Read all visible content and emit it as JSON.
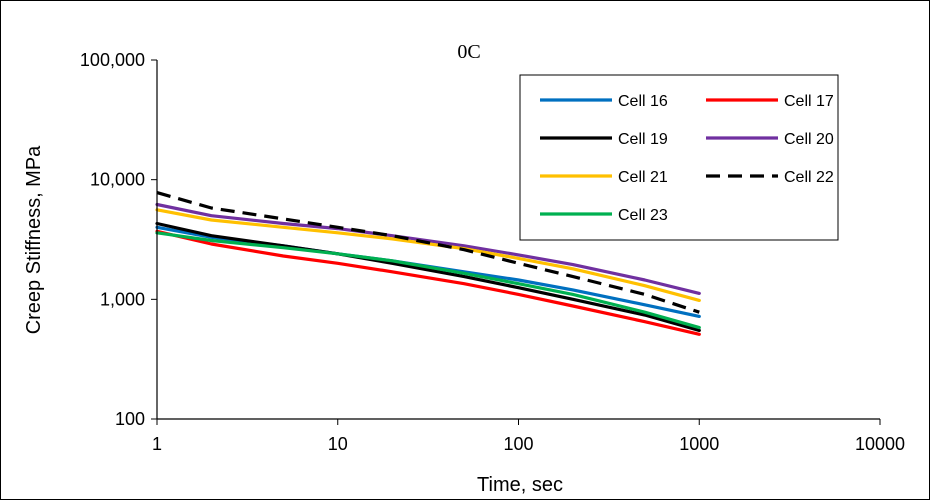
{
  "chart_data": {
    "type": "line",
    "title": "0C",
    "xlabel": "Time, sec",
    "ylabel": "Creep Stiffness, MPa",
    "x_scale": "log",
    "y_scale": "log",
    "xlim": [
      1,
      10000
    ],
    "ylim": [
      100,
      100000
    ],
    "x_ticks": [
      1,
      10,
      100,
      1000,
      10000
    ],
    "x_tick_labels": [
      "1",
      "10",
      "100",
      "1000",
      "10000"
    ],
    "y_ticks": [
      100,
      1000,
      10000,
      100000
    ],
    "y_tick_labels": [
      "100",
      "1,000",
      "10,000",
      "100,000"
    ],
    "grid": false,
    "legend_position": "top-right",
    "series": [
      {
        "name": "Cell 16",
        "color": "#0070C0",
        "dash": "solid",
        "x": [
          1,
          2,
          5,
          10,
          20,
          50,
          100,
          200,
          500,
          1000
        ],
        "y": [
          4000,
          3300,
          2800,
          2400,
          2100,
          1700,
          1450,
          1200,
          900,
          720
        ]
      },
      {
        "name": "Cell 17",
        "color": "#FF0000",
        "dash": "solid",
        "x": [
          1,
          2,
          5,
          10,
          20,
          50,
          100,
          200,
          500,
          1000
        ],
        "y": [
          3700,
          2900,
          2300,
          2000,
          1700,
          1350,
          1100,
          880,
          650,
          510
        ]
      },
      {
        "name": "Cell 19",
        "color": "#000000",
        "dash": "solid",
        "x": [
          1,
          2,
          5,
          10,
          20,
          50,
          100,
          200,
          500,
          1000
        ],
        "y": [
          4300,
          3400,
          2800,
          2400,
          2000,
          1550,
          1250,
          1000,
          740,
          550
        ]
      },
      {
        "name": "Cell 20",
        "color": "#7030A0",
        "dash": "solid",
        "x": [
          1,
          2,
          5,
          10,
          20,
          50,
          100,
          200,
          500,
          1000
        ],
        "y": [
          6200,
          5000,
          4300,
          3900,
          3400,
          2800,
          2350,
          1950,
          1450,
          1120
        ]
      },
      {
        "name": "Cell 21",
        "color": "#FFC000",
        "dash": "solid",
        "x": [
          1,
          2,
          5,
          10,
          20,
          50,
          100,
          200,
          500,
          1000
        ],
        "y": [
          5600,
          4600,
          4000,
          3600,
          3200,
          2650,
          2200,
          1800,
          1300,
          980
        ]
      },
      {
        "name": "Cell 22",
        "color": "#000000",
        "dash": "dashed",
        "x": [
          1,
          2,
          5,
          10,
          20,
          50,
          100,
          200,
          500,
          1000
        ],
        "y": [
          7800,
          5800,
          4700,
          4000,
          3400,
          2600,
          2000,
          1550,
          1100,
          780
        ]
      },
      {
        "name": "Cell 23",
        "color": "#00B050",
        "dash": "solid",
        "x": [
          1,
          2,
          5,
          10,
          20,
          50,
          100,
          200,
          500,
          1000
        ],
        "y": [
          3600,
          3100,
          2700,
          2400,
          2100,
          1650,
          1350,
          1100,
          780,
          580
        ]
      }
    ]
  }
}
